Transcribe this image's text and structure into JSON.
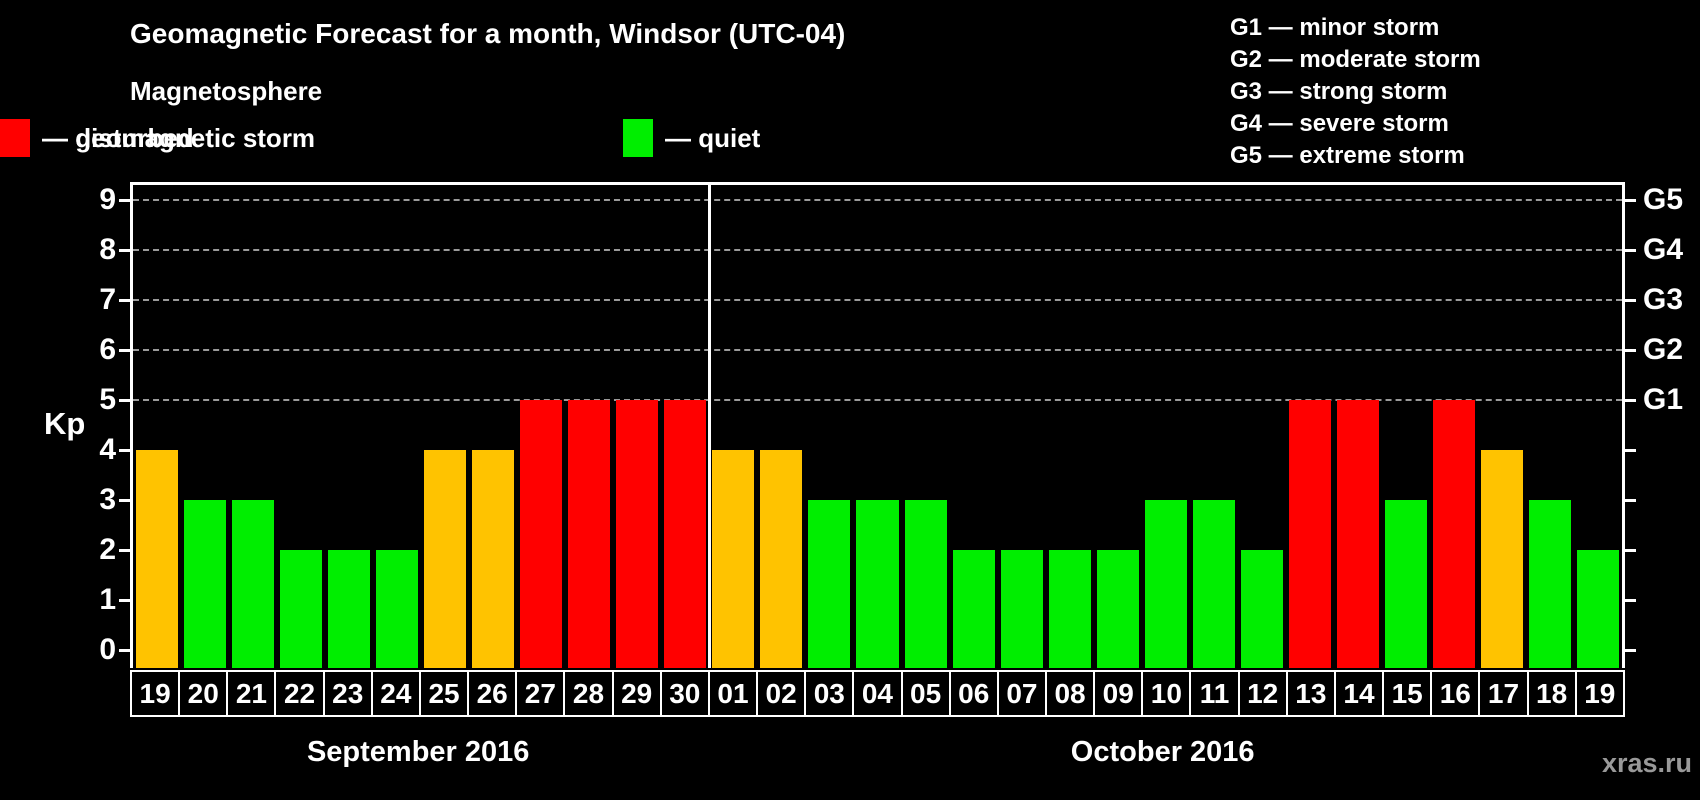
{
  "header": {
    "title": "Geomagnetic Forecast for a month, Windsor (UTC-04)",
    "subtitle": "Magnetosphere"
  },
  "legend": {
    "items": [
      {
        "name": "quiet",
        "label": "— quiet",
        "color": "#00EE00"
      },
      {
        "name": "disturbed",
        "label": "— disturbed",
        "color": "#FFC300"
      },
      {
        "name": "storm",
        "label": "— geomagnetic storm",
        "color": "#FF0000"
      }
    ]
  },
  "g_scale_legend": {
    "items": [
      "G1 — minor storm",
      "G2 — moderate storm",
      "G3 — strong storm",
      "G4 — severe storm",
      "G5 — extreme storm"
    ]
  },
  "watermark": "xras.ru",
  "chart_data": {
    "type": "bar",
    "title": "Geomagnetic Forecast for a month, Windsor (UTC-04)",
    "ylabel": "Kp",
    "ylim": [
      0,
      9
    ],
    "yticks": [
      0,
      1,
      2,
      3,
      4,
      5,
      6,
      7,
      8,
      9
    ],
    "gridlines_at_kp": [
      5,
      6,
      7,
      8,
      9
    ],
    "legend_position": "top-left",
    "right_axis": [
      {
        "kp": 5,
        "label": "G1"
      },
      {
        "kp": 6,
        "label": "G2"
      },
      {
        "kp": 7,
        "label": "G3"
      },
      {
        "kp": 8,
        "label": "G4"
      },
      {
        "kp": 9,
        "label": "G5"
      }
    ],
    "status_colors": {
      "quiet": "#00EE00",
      "disturbed": "#FFC300",
      "storm": "#FF0000"
    },
    "groups": [
      {
        "label": "September 2016",
        "days": [
          "19",
          "20",
          "21",
          "22",
          "23",
          "24",
          "25",
          "26",
          "27",
          "28",
          "29",
          "30"
        ],
        "values": [
          4,
          3,
          3,
          2,
          2,
          2,
          4,
          4,
          5,
          5,
          5,
          5
        ],
        "status": [
          "disturbed",
          "quiet",
          "quiet",
          "quiet",
          "quiet",
          "quiet",
          "disturbed",
          "disturbed",
          "storm",
          "storm",
          "storm",
          "storm"
        ]
      },
      {
        "label": "October 2016",
        "days": [
          "01",
          "02",
          "03",
          "04",
          "05",
          "06",
          "07",
          "08",
          "09",
          "10",
          "11",
          "12",
          "13",
          "14",
          "15",
          "16",
          "17",
          "18",
          "19"
        ],
        "values": [
          4,
          4,
          3,
          3,
          3,
          2,
          2,
          2,
          2,
          3,
          3,
          2,
          5,
          5,
          3,
          5,
          4,
          3,
          2
        ],
        "status": [
          "disturbed",
          "disturbed",
          "quiet",
          "quiet",
          "quiet",
          "quiet",
          "quiet",
          "quiet",
          "quiet",
          "quiet",
          "quiet",
          "quiet",
          "storm",
          "storm",
          "quiet",
          "storm",
          "disturbed",
          "quiet",
          "quiet"
        ]
      }
    ]
  }
}
